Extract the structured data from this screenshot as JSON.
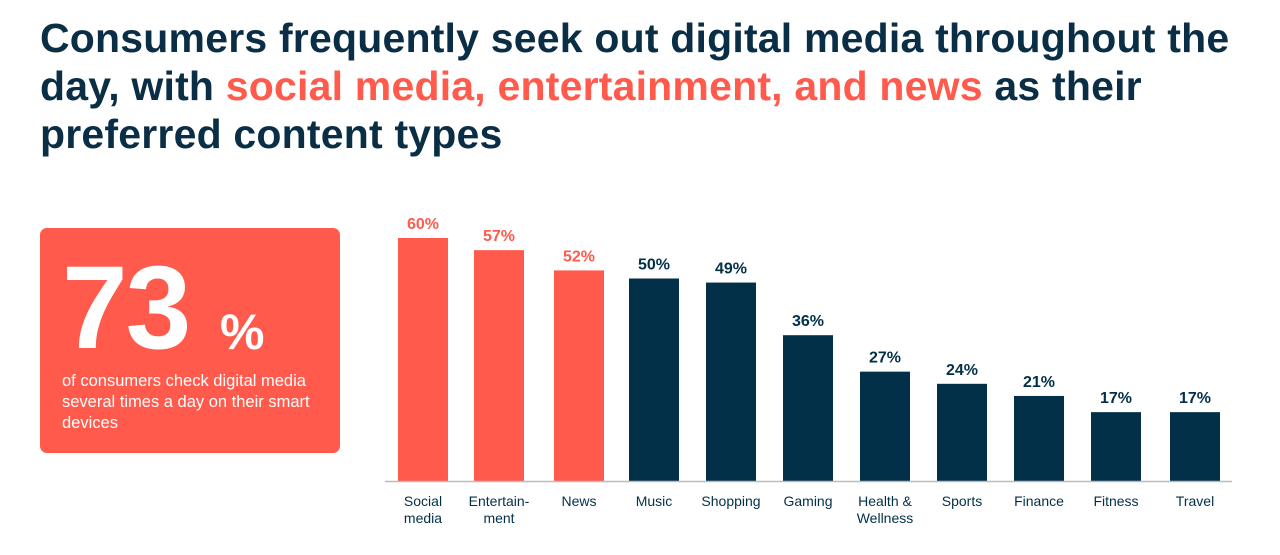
{
  "title": {
    "before": "Consumers frequently seek out digital media throughout the day, with ",
    "highlight": "social media, entertainment, and news",
    "after": " as their preferred content types"
  },
  "stat": {
    "value": "73",
    "unit": "%",
    "description": "of consumers check digital media several times a day on their smart devices"
  },
  "colors": {
    "highlight": "#ff5a4b",
    "primary": "#033049",
    "axis": "#bbbbbb"
  },
  "chart_data": {
    "type": "bar",
    "categories": [
      [
        "Social",
        "media"
      ],
      [
        "Entertain-",
        "ment"
      ],
      [
        "News"
      ],
      [
        "Music"
      ],
      [
        "Shopping"
      ],
      [
        "Gaming"
      ],
      [
        "Health &",
        "Wellness"
      ],
      [
        "Sports"
      ],
      [
        "Finance"
      ],
      [
        "Fitness"
      ],
      [
        "Travel"
      ]
    ],
    "values": [
      60,
      57,
      52,
      50,
      49,
      36,
      27,
      24,
      21,
      17,
      17
    ],
    "labels": [
      "60%",
      "57%",
      "52%",
      "50%",
      "49%",
      "36%",
      "27%",
      "24%",
      "21%",
      "17%",
      "17%"
    ],
    "highlighted": [
      true,
      true,
      true,
      false,
      false,
      false,
      false,
      false,
      false,
      false,
      false
    ],
    "ylim": [
      0,
      60
    ],
    "grid": false
  }
}
